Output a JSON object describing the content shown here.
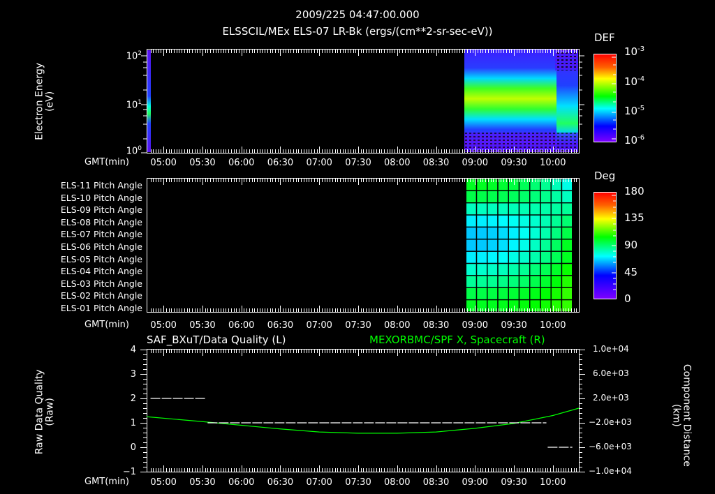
{
  "header": {
    "timestamp": "2009/225 04:47:00.000",
    "subtitle": "ELSSCIL/MEx ELS-07 LR-Bk  (ergs/(cm**2-sr-sec-eV))"
  },
  "panel1": {
    "ylabel": "Electron Energy",
    "yunit": "(eV)",
    "yticks": [
      {
        "base": "10",
        "exp": "2"
      },
      {
        "base": "10",
        "exp": "1"
      },
      {
        "base": "10",
        "exp": "0"
      }
    ],
    "xaxis_label": "GMT(min)",
    "xticks": [
      "05:00",
      "05:30",
      "06:00",
      "06:30",
      "07:00",
      "07:30",
      "08:00",
      "08:30",
      "09:00",
      "09:30",
      "10:00"
    ],
    "colorbar": {
      "title": "DEF",
      "ticks": [
        {
          "base": "10",
          "exp": "-3"
        },
        {
          "base": "10",
          "exp": "-4"
        },
        {
          "base": "10",
          "exp": "-5"
        },
        {
          "base": "10",
          "exp": "-6"
        }
      ]
    }
  },
  "panel2": {
    "row_labels": [
      "ELS-11 Pitch Angle",
      "ELS-10 Pitch Angle",
      "ELS-09 Pitch Angle",
      "ELS-08 Pitch Angle",
      "ELS-07 Pitch Angle",
      "ELS-06 Pitch Angle",
      "ELS-05 Pitch Angle",
      "ELS-04 Pitch Angle",
      "ELS-03 Pitch Angle",
      "ELS-02 Pitch Angle",
      "ELS-01 Pitch Angle"
    ],
    "xaxis_label": "GMT(min)",
    "xticks": [
      "05:00",
      "05:30",
      "06:00",
      "06:30",
      "07:00",
      "07:30",
      "08:00",
      "08:30",
      "09:00",
      "09:30",
      "10:00"
    ],
    "colorbar": {
      "title": "Deg",
      "ticks": [
        "180",
        "135",
        "90",
        "45",
        "0"
      ]
    }
  },
  "panel3": {
    "left_title": "SAF_BXuT/Data Quality (L)",
    "right_title": "MEXORBMC/SPF X, Spacecraft (R)",
    "right_title_color": "#00ff00",
    "ylabel_left": "Raw Data Quality",
    "yunit_left": "(Raw)",
    "yticks_left": [
      "4",
      "3",
      "2",
      "1",
      "0",
      "−1"
    ],
    "ylabel_right": "Component Distance",
    "yunit_right": "(km)",
    "yticks_right": [
      "1.0e+04",
      "6.0e+03",
      "2.0e+03",
      "−2.0e+03",
      "−6.0e+03",
      "−1.0e+04"
    ],
    "xaxis_label": "GMT(min)",
    "xticks": [
      "05:00",
      "05:30",
      "06:00",
      "06:30",
      "07:00",
      "07:30",
      "08:00",
      "08:30",
      "09:00",
      "09:30",
      "10:00"
    ]
  },
  "chart_data": [
    {
      "type": "heatmap",
      "title": "ELSSCIL/MEx ELS-07 LR-Bk (ergs/(cm**2-sr-sec-eV))",
      "subtitle": "2009/225 04:47:00.000",
      "xlabel": "GMT(min)",
      "ylabel": "Electron Energy (eV)",
      "yscale": "log",
      "ylim": [
        1,
        150
      ],
      "xlim": [
        "04:47",
        "10:20"
      ],
      "colorbar": {
        "label": "DEF",
        "scale": "log",
        "range": [
          1e-06,
          0.001
        ]
      },
      "description": "Data present only near 04:47-04:48 (narrow strip, peak ~1e-4.5 at ~5-10 eV) and from ~08:53 to 10:20; band of peak DEF ~1e-4 between ~10-40 eV until ~09:50, then shifts to ~3-8 eV after ~10:00.",
      "segments": [
        {
          "t_start": "04:47",
          "t_end": "04:48",
          "peak_energy_eV": 6,
          "peak_def": 3e-05
        },
        {
          "t_start": "08:53",
          "t_end": "09:50",
          "peak_energy_eV": 20,
          "peak_def": 0.00015
        },
        {
          "t_start": "09:55",
          "t_end": "10:20",
          "peak_energy_eV": 5,
          "peak_def": 6e-05
        }
      ]
    },
    {
      "type": "heatmap",
      "title": "ELS Pitch Angles",
      "xlabel": "GMT(min)",
      "categories": [
        "ELS-11",
        "ELS-10",
        "ELS-09",
        "ELS-08",
        "ELS-07",
        "ELS-06",
        "ELS-05",
        "ELS-04",
        "ELS-03",
        "ELS-02",
        "ELS-01"
      ],
      "colorbar": {
        "label": "Deg",
        "range": [
          0,
          180
        ],
        "ticks": [
          0,
          45,
          90,
          135,
          180
        ]
      },
      "xlim": [
        "04:47",
        "10:20"
      ],
      "data_range": [
        "08:53",
        "10:15"
      ],
      "approx_values_deg_by_row_start_to_end": [
        [
          100,
          75
        ],
        [
          95,
          80
        ],
        [
          80,
          85
        ],
        [
          70,
          90
        ],
        [
          65,
          95
        ],
        [
          65,
          100
        ],
        [
          70,
          100
        ],
        [
          78,
          105
        ],
        [
          85,
          108
        ],
        [
          95,
          110
        ],
        [
          100,
          110
        ]
      ]
    },
    {
      "type": "line",
      "title": "SAF_BXuT/Data Quality (L) | MEXORBMC/SPF X, Spacecraft (R)",
      "xlabel": "GMT(min)",
      "xlim": [
        "04:47",
        "10:20"
      ],
      "series": [
        {
          "name": "Data Quality (L)",
          "axis": "left",
          "color": "#ffffff",
          "style": "dashed",
          "ylim": [
            -1,
            4
          ],
          "x": [
            "04:50",
            "05:33",
            "05:34",
            "09:55",
            "09:56",
            "10:15"
          ],
          "values": [
            2,
            2,
            1,
            1,
            0,
            0
          ]
        },
        {
          "name": "SPF X, Spacecraft (R)",
          "axis": "right",
          "color": "#00ff00",
          "ylim": [
            -10000,
            10000
          ],
          "x": [
            "04:47",
            "05:30",
            "06:00",
            "06:30",
            "07:00",
            "07:30",
            "08:00",
            "08:30",
            "09:00",
            "09:30",
            "10:00",
            "10:20"
          ],
          "values": [
            -1000,
            -1800,
            -2400,
            -3000,
            -3500,
            -3700,
            -3700,
            -3500,
            -2900,
            -2100,
            -800,
            400
          ]
        }
      ]
    }
  ]
}
